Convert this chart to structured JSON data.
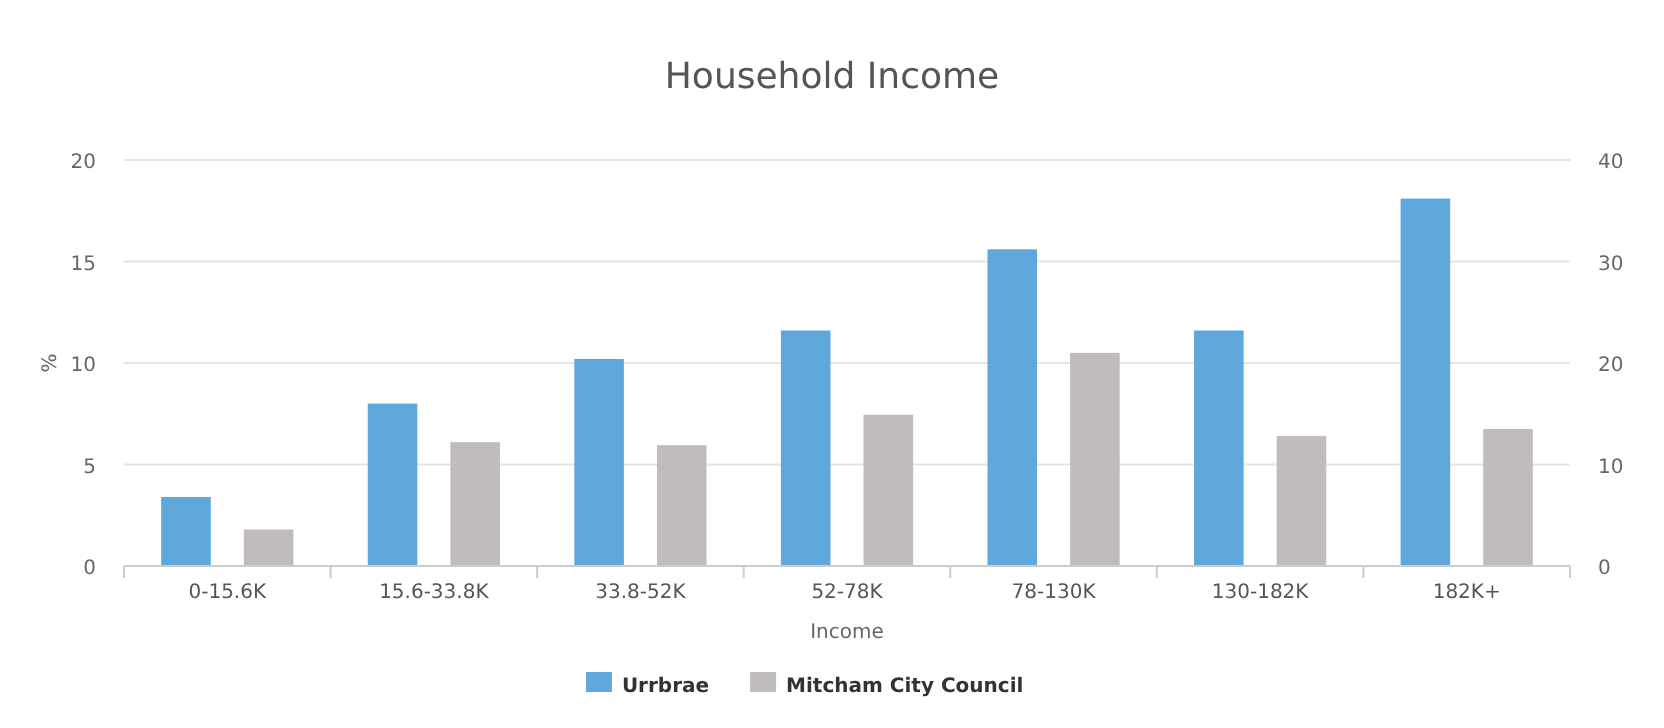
{
  "chart_data": {
    "type": "bar",
    "title": "Household Income",
    "xlabel": "Income",
    "ylabel": "%",
    "categories": [
      "0-15.6K",
      "15.6-33.8K",
      "33.8-52K",
      "52-78K",
      "78-130K",
      "130-182K",
      "182K+"
    ],
    "series": [
      {
        "name": "Urrbrae",
        "color": "#5fa8dc",
        "values": [
          3.4,
          8.0,
          10.2,
          11.6,
          15.6,
          11.6,
          18.1
        ]
      },
      {
        "name": "Mitcham City Council",
        "color": "#c0bcbc",
        "axis": "y2",
        "values": [
          3.6,
          12.2,
          11.9,
          14.9,
          21.0,
          12.8,
          13.5
        ]
      }
    ],
    "ylim": [
      0,
      20
    ],
    "yticks": [
      0,
      5,
      10,
      15,
      20
    ],
    "y2lim": [
      0,
      40
    ],
    "y2ticks": [
      0,
      10,
      20,
      30,
      40
    ],
    "grid": "y",
    "legend": "bottom"
  }
}
